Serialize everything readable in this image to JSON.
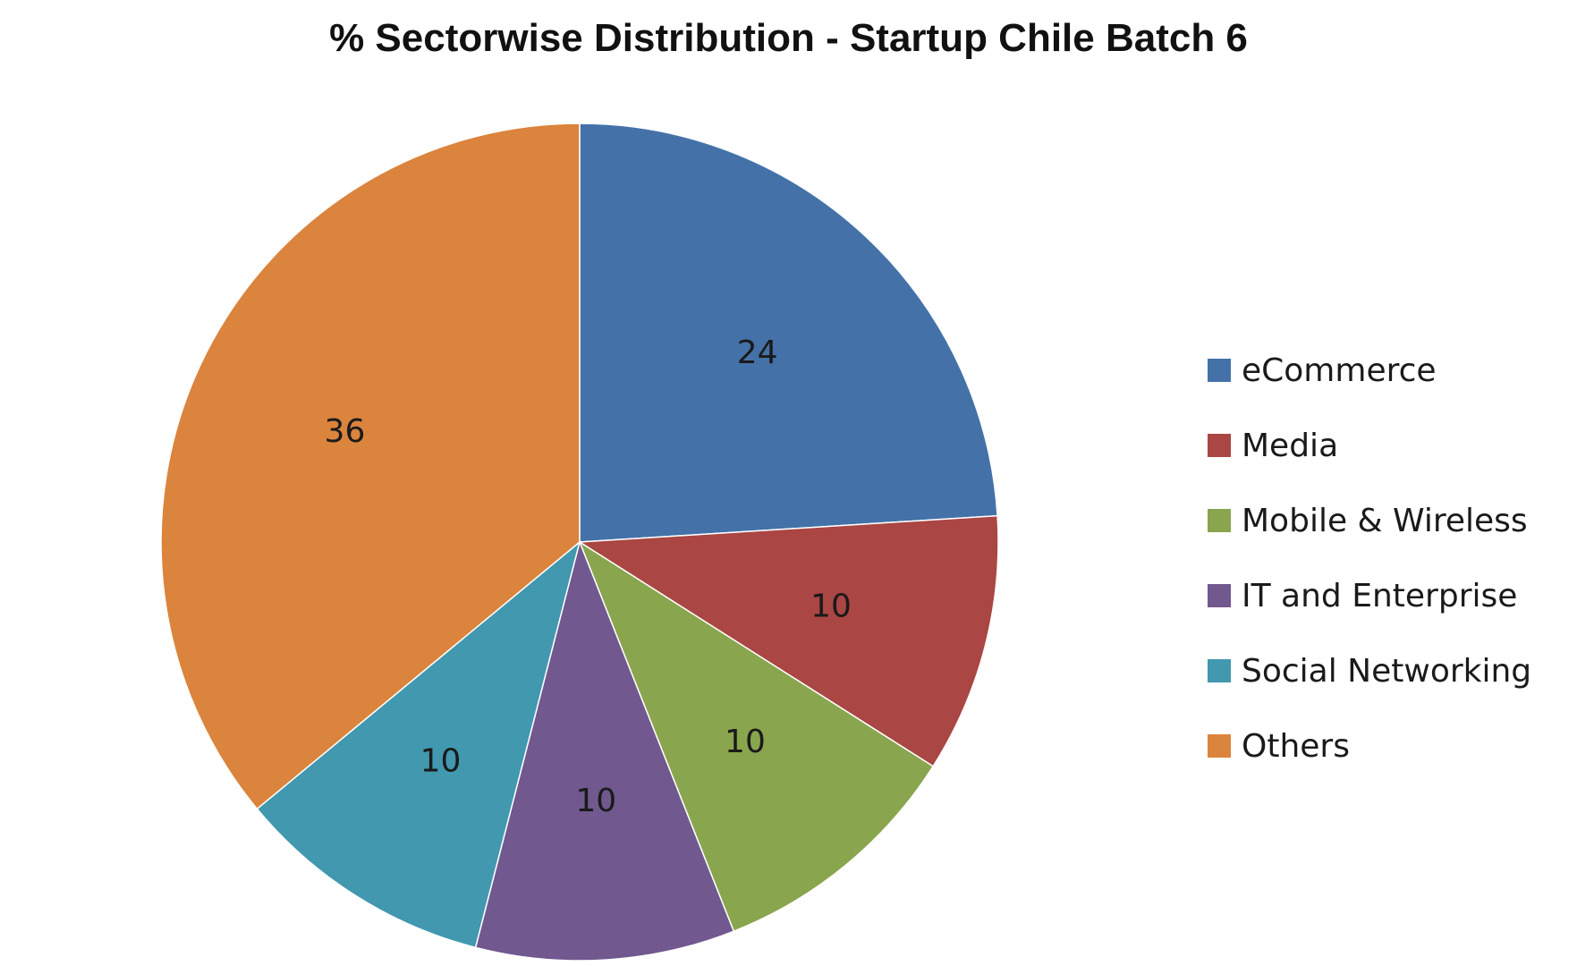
{
  "chart_data": {
    "type": "pie",
    "title": "% Sectorwise Distribution - Startup Chile Batch 6",
    "categories": [
      "eCommerce",
      "Media",
      "Mobile & Wireless",
      "IT and Enterprise",
      "Social Networking",
      "Others"
    ],
    "values": [
      24,
      10,
      10,
      10,
      10,
      36
    ],
    "colors": [
      "#4472A8",
      "#AA4643",
      "#89A54E",
      "#71588F",
      "#4198AF",
      "#DB843D"
    ],
    "legend_position": "right",
    "start_angle": "12 o'clock",
    "direction": "clockwise"
  }
}
